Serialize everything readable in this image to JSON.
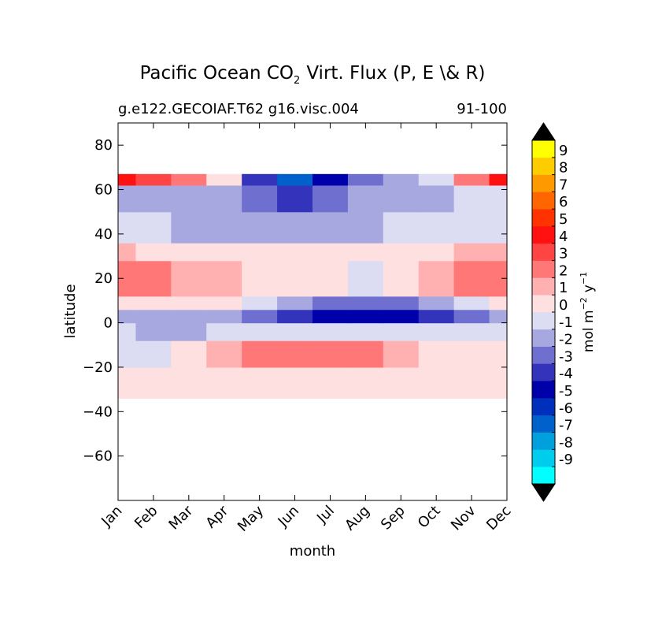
{
  "chart_data": {
    "type": "heatmap",
    "title_main": "Pacific Ocean CO",
    "title_sub": "2",
    "title_rest": "Virt. Flux (P, E \\& R)",
    "subtitle_left": "g.e122.GECOIAF.T62 g16.visc.004",
    "subtitle_right": "91-100",
    "xlabel": "month",
    "ylabel": "latitude",
    "x": [
      "Jan",
      "Feb",
      "Mar",
      "Apr",
      "May",
      "Jun",
      "Jul",
      "Aug",
      "Sep",
      "Oct",
      "Nov",
      "Dec"
    ],
    "xlim": [
      0,
      11
    ],
    "ylim": [
      -80,
      90
    ],
    "yticks": [
      80,
      60,
      40,
      20,
      0,
      -20,
      -40,
      -60
    ],
    "grid": false,
    "colorbar": {
      "label_main": "mol m",
      "label_exp1": "−2",
      "label_y": "y",
      "label_exp2": "−1",
      "levels": [
        -10,
        -9,
        -8,
        -7,
        -6,
        -5,
        -4,
        -3,
        -2,
        -1,
        0,
        1,
        2,
        3,
        4,
        5,
        6,
        7,
        8,
        9,
        10
      ],
      "tick_labels": [
        "9",
        "8",
        "7",
        "6",
        "5",
        "4",
        "3",
        "2",
        "1",
        "0",
        "-1",
        "-2",
        "-3",
        "-4",
        "-5",
        "-6",
        "-7",
        "-8",
        "-9"
      ],
      "colors": [
        "#00ffff",
        "#00ccee",
        "#00a0dd",
        "#0060cc",
        "#0030bb",
        "#0000aa",
        "#3333bb",
        "#6f6fd0",
        "#a8a8e0",
        "#dcdcf2",
        "#ffe0e0",
        "#ffb0b0",
        "#ff7777",
        "#ff4444",
        "#ff1111",
        "#ff3300",
        "#ff6600",
        "#ff9900",
        "#ffcc00",
        "#ffff00"
      ],
      "under_color": "#000000",
      "over_color": "#000000"
    },
    "fields": [
      {
        "lat": [
          -34,
          -20
        ],
        "values": [
          0.5,
          0.5,
          0.5,
          0.5,
          0.5,
          0.5,
          0.5,
          0.5,
          0.5,
          0.5,
          0.5,
          0.5
        ]
      },
      {
        "lat": [
          -20,
          -8
        ],
        "values": [
          -0.5,
          -0.5,
          0.5,
          1.5,
          2.5,
          2.5,
          2.5,
          2.5,
          1.5,
          0.5,
          0.5,
          0.5
        ]
      },
      {
        "lat": [
          -8,
          0
        ],
        "values": [
          -0.5,
          -1.5,
          -1.5,
          -0.5,
          -0.5,
          -0.5,
          -0.5,
          -0.5,
          -0.5,
          -0.5,
          -0.5,
          -0.5
        ]
      },
      {
        "lat": [
          0,
          6
        ],
        "values": [
          -1.5,
          -1.5,
          -1.5,
          -1.5,
          -2.5,
          -3.5,
          -4.5,
          -4.5,
          -4.5,
          -3.5,
          -2.5,
          -1.5
        ]
      },
      {
        "lat": [
          6,
          12
        ],
        "values": [
          0.5,
          0.5,
          0.5,
          0.5,
          -0.5,
          -1.5,
          -2.5,
          -2.5,
          -2.5,
          -1.5,
          -0.5,
          0.5
        ]
      },
      {
        "lat": [
          12,
          28
        ],
        "values": [
          2.5,
          2.5,
          1.5,
          1.5,
          0.5,
          0.5,
          0.5,
          -0.5,
          0.5,
          1.5,
          2.5,
          2.5
        ]
      },
      {
        "lat": [
          28,
          36
        ],
        "values": [
          1.5,
          0.5,
          0.5,
          0.5,
          0.5,
          0.5,
          0.5,
          0.5,
          0.5,
          0.5,
          1.5,
          1.5
        ]
      },
      {
        "lat": [
          36,
          50
        ],
        "values": [
          -0.5,
          -0.5,
          -1.5,
          -1.5,
          -1.5,
          -1.5,
          -1.5,
          -1.5,
          -0.5,
          -0.5,
          -0.5,
          -0.5
        ]
      },
      {
        "lat": [
          50,
          62
        ],
        "values": [
          -1.5,
          -1.5,
          -1.5,
          -1.5,
          -2.5,
          -3.5,
          -2.5,
          -1.5,
          -1.5,
          -1.5,
          -0.5,
          -0.5
        ]
      },
      {
        "lat": [
          62,
          67
        ],
        "values": [
          4.5,
          3.5,
          2.5,
          0.5,
          -3.5,
          -6.5,
          -4.5,
          -2.5,
          -1.5,
          -0.5,
          2.5,
          4.5
        ]
      }
    ]
  }
}
